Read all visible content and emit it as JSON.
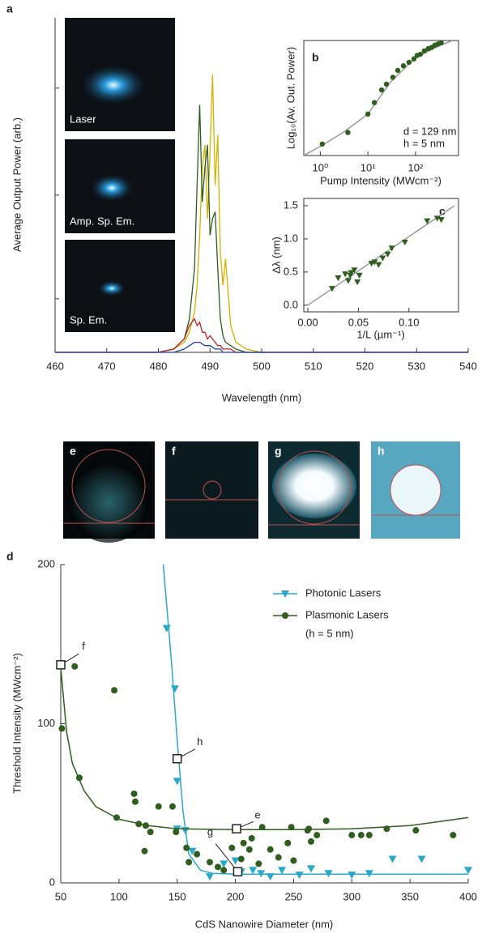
{
  "chart_data": [
    {
      "type": "line",
      "panel": "a",
      "ylabel": "Average Output Power (arb.)",
      "xlabel": "Wavelength (nm)",
      "xlim": [
        460,
        540
      ],
      "xticks": [
        460,
        470,
        480,
        490,
        500,
        510,
        520,
        530,
        540
      ],
      "ylim": [
        0,
        1
      ],
      "yticks": [
        0.16,
        0.47,
        0.79
      ],
      "x": [
        460,
        470,
        480,
        483,
        485,
        486,
        487,
        487.5,
        488,
        488.5,
        489,
        489.5,
        490,
        490.5,
        491,
        491.5,
        492,
        492.5,
        493,
        494,
        495,
        497,
        500,
        510,
        520,
        540
      ],
      "series": [
        {
          "color": "#d4b000",
          "values": [
            0,
            0,
            0,
            0.01,
            0.03,
            0.06,
            0.12,
            0.2,
            0.35,
            0.55,
            0.62,
            0.4,
            0.6,
            0.83,
            0.5,
            0.65,
            0.3,
            0.2,
            0.28,
            0.08,
            0.03,
            0.01,
            0,
            0,
            0,
            0
          ]
        },
        {
          "color": "#2f5e1e",
          "values": [
            0,
            0,
            0,
            0.01,
            0.04,
            0.1,
            0.25,
            0.5,
            0.74,
            0.45,
            0.55,
            0.62,
            0.35,
            0.4,
            0.42,
            0.25,
            0.1,
            0.05,
            0.03,
            0.02,
            0.01,
            0,
            0,
            0,
            0,
            0
          ]
        },
        {
          "color": "#c0222a",
          "values": [
            0,
            0,
            0,
            0.01,
            0.04,
            0.08,
            0.1,
            0.08,
            0.09,
            0.06,
            0.06,
            0.04,
            0.05,
            0.04,
            0.03,
            0.02,
            0.02,
            0.01,
            0.01,
            0.01,
            0,
            0,
            0,
            0,
            0,
            0
          ]
        },
        {
          "color": "#1f3f9a",
          "values": [
            0,
            0,
            0,
            0,
            0.01,
            0.02,
            0.03,
            0.03,
            0.03,
            0.025,
            0.02,
            0.02,
            0.02,
            0.015,
            0.01,
            0.01,
            0.01,
            0,
            0,
            0,
            0,
            0,
            0,
            0,
            0,
            0
          ]
        }
      ]
    },
    {
      "type": "scatter",
      "panel": "b",
      "ylabel": "Log₁₀(Av. Out. Power)",
      "xlabel": "Pump Intensity (MWcm⁻²)",
      "xscale": "log",
      "xlim": [
        0.45,
        800
      ],
      "xticks": [
        {
          "value": 1,
          "label": "10⁰"
        },
        {
          "value": 10,
          "label": "10¹"
        },
        {
          "value": 100,
          "label": "10²"
        }
      ],
      "ylim": [
        0,
        1
      ],
      "notes": [
        "d = 129 nm",
        "h = 5 nm"
      ],
      "series": [
        {
          "color": "#2f5e1e",
          "marker": "circle",
          "x": [
            1.1,
            3.8,
            10,
            13.7,
            19.4,
            24.5,
            33.5,
            42.4,
            55.7,
            73,
            92.5,
            108,
            126,
            153,
            186,
            218,
            256,
            299,
            347
          ],
          "values": [
            0.1,
            0.2,
            0.36,
            0.46,
            0.57,
            0.62,
            0.68,
            0.74,
            0.78,
            0.81,
            0.84,
            0.87,
            0.88,
            0.91,
            0.93,
            0.94,
            0.96,
            0.97,
            0.98
          ],
          "fit": {
            "color": "#999999",
            "x": [
              0.45,
              1,
              3,
              10,
              30,
              100,
              300,
              600
            ],
            "values": [
              0,
              0.08,
              0.2,
              0.36,
              0.64,
              0.85,
              0.95,
              1
            ]
          }
        }
      ]
    },
    {
      "type": "scatter",
      "panel": "c",
      "ylabel": "Δλ (nm)",
      "xlabel": "1/L (µm⁻¹)",
      "xlim": [
        -0.004,
        0.149
      ],
      "xticks": [
        {
          "value": 0,
          "label": "0.00"
        },
        {
          "value": 0.05,
          "label": "0.05"
        },
        {
          "value": 0.1,
          "label": "0.10"
        }
      ],
      "ylim": [
        -0.1,
        1.61
      ],
      "yticks": [
        {
          "value": 0,
          "label": "0.0"
        },
        {
          "value": 0.5,
          "label": "0.5"
        },
        {
          "value": 1,
          "label": "1.0"
        },
        {
          "value": 1.5,
          "label": "1.5"
        }
      ],
      "series": [
        {
          "color": "#2f5e1e",
          "marker": "triangle",
          "x": [
            0.024,
            0.03,
            0.037,
            0.04,
            0.042,
            0.043,
            0.046,
            0.049,
            0.051,
            0.063,
            0.066,
            0.07,
            0.074,
            0.079,
            0.083,
            0.096,
            0.118,
            0.128,
            0.132
          ],
          "values": [
            0.25,
            0.41,
            0.47,
            0.37,
            0.45,
            0.49,
            0.53,
            0.35,
            0.45,
            0.63,
            0.65,
            0.61,
            0.71,
            0.77,
            0.86,
            0.95,
            1.27,
            1.31,
            1.29
          ],
          "fit": {
            "color": "#999999",
            "x": [
              0,
              0.145
            ],
            "values": [
              0,
              1.5
            ]
          }
        }
      ]
    },
    {
      "type": "scatter",
      "panel": "d",
      "ylabel": "Threshold Intensity (MWcm⁻²)",
      "xlabel": "CdS Nanowire Diameter (nm)",
      "xlim": [
        50,
        400
      ],
      "xticks": [
        50,
        100,
        150,
        200,
        250,
        300,
        350,
        400
      ],
      "ylim": [
        0,
        200
      ],
      "yticks": [
        0,
        100,
        200
      ],
      "series": [
        {
          "name": "Photonic Lasers",
          "color": "#2aa8c8",
          "marker": "triangle",
          "x": [
            141,
            148,
            150,
            150,
            157,
            163,
            178,
            190,
            200,
            205,
            215,
            222,
            230,
            240,
            255,
            265,
            280,
            300,
            315,
            335,
            360,
            400
          ],
          "values": [
            160,
            122,
            64,
            34,
            33,
            20,
            4,
            12,
            14,
            7,
            8,
            6,
            4,
            8,
            5,
            9,
            6,
            5,
            6,
            15,
            15,
            8
          ],
          "fit": {
            "color": "#2aa8c8",
            "x": [
              138,
              145,
              150,
              155,
              160,
              170,
              180,
              200,
              250,
              300,
              400
            ],
            "values": [
              200,
              140,
              90,
              45,
              18,
              8,
              6,
              5.5,
              5.5,
              5.5,
              5.5
            ]
          }
        },
        {
          "name": "Plasmonic Lasers",
          "note": "(h = 5 nm)",
          "color": "#2f5e1e",
          "marker": "circle",
          "x": [
            51,
            62,
            66,
            96,
            98,
            113,
            114,
            117,
            122,
            123,
            127,
            134,
            146,
            149,
            158,
            160,
            167,
            178,
            185,
            190,
            197,
            205,
            207,
            212,
            214,
            220,
            223,
            230,
            237,
            245,
            248,
            250,
            262,
            263,
            265,
            270,
            278,
            300,
            308,
            315,
            330,
            355,
            387
          ],
          "values": [
            97,
            136,
            66,
            121,
            41,
            56,
            51,
            37,
            20,
            36,
            32,
            48,
            48,
            32,
            22,
            13,
            18,
            13,
            10,
            8,
            22,
            15,
            25,
            21,
            28,
            12,
            35,
            21,
            16,
            25,
            35,
            14,
            33,
            34,
            26,
            30,
            39,
            30,
            30,
            30,
            34,
            33,
            30
          ],
          "fit": {
            "color": "#2f5e1e",
            "x": [
              50,
              55,
              60,
              70,
              80,
              100,
              125,
              150,
              200,
              250,
              300,
              350,
              400
            ],
            "values": [
              135,
              95,
              75,
              58,
              48,
              40,
              36,
              34,
              33.5,
              33.5,
              34,
              36,
              41
            ]
          }
        }
      ],
      "annotations": [
        {
          "label": "f",
          "x": 50,
          "y": 137
        },
        {
          "label": "h",
          "x": 150,
          "y": 78
        },
        {
          "label": "e",
          "x": 201,
          "y": 34
        },
        {
          "label": "g",
          "x": 202,
          "y": 7
        }
      ]
    }
  ],
  "images": {
    "insets": [
      "Laser",
      "Amp. Sp. Em.",
      "Sp. Em."
    ],
    "panels": [
      "e",
      "f",
      "g",
      "h"
    ]
  }
}
